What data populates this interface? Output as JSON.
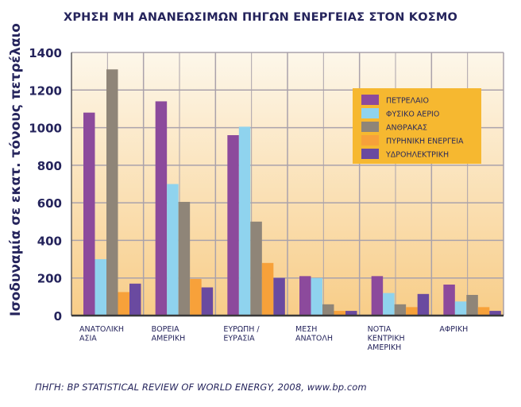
{
  "chart_data": {
    "type": "bar",
    "title": "ΧΡΗΣΗ ΜΗ ΑΝΑΝΕΩΣΙΜΩΝ ΠΗΓΩΝ ΕΝΕΡΓΕΙΑΣ ΣΤΟΝ ΚΟΣΜΟ",
    "ylabel": "Ισοδυναμία σε εκατ. τόνους πετρέλαιο",
    "xlabel": "",
    "ylim": [
      0,
      1400
    ],
    "yticks": [
      "0",
      "200",
      "400",
      "600",
      "800",
      "1000",
      "1200",
      "1400"
    ],
    "grid": true,
    "legend_position": "top-right",
    "categories": [
      [
        "ΑΝΑΤΟΛΙΚΗ",
        "ΑΣΙΑ"
      ],
      [
        "ΒΟΡΕΙΑ",
        "ΑΜΕΡΙΚΗ"
      ],
      [
        "ΕΥΡΩΠΗ /",
        "ΕΥΡΑΣΙΑ"
      ],
      [
        "ΜΕΣΗ",
        "ΑΝΑΤΟΛΗ"
      ],
      [
        "ΝΟΤΙΑ",
        "ΚΕΝΤΡΙΚΗ",
        "ΑΜΕΡΙΚΗ"
      ],
      [
        "ΑΦΡΙΚΗ"
      ]
    ],
    "series": [
      {
        "name": "ΠΕΤΡΕΛΑΙΟ",
        "color": "#8c4a9c",
        "values": [
          1080,
          1140,
          960,
          210,
          210,
          165
        ]
      },
      {
        "name": "ΦΥΣΙΚΟ ΑΕΡΙΟ",
        "color": "#8fd3ee",
        "values": [
          300,
          700,
          1005,
          200,
          120,
          75
        ]
      },
      {
        "name": "ΑΝΘΡΑΚΑΣ",
        "color": "#8f8578",
        "values": [
          1310,
          605,
          500,
          60,
          60,
          110
        ]
      },
      {
        "name": "ΠΥΡΗΝΙΚΗ ΕΝΕΡΓΕΙΑ",
        "color": "#f7a13a",
        "values": [
          125,
          195,
          280,
          25,
          45,
          45
        ]
      },
      {
        "name": "ΥΔΡΟΗΛΕΚΤΡΙΚΗ",
        "color": "#6a4aa0",
        "values": [
          170,
          150,
          200,
          25,
          115,
          25
        ]
      }
    ]
  },
  "source": "ΠΗΓΗ: BP STATISTICAL REVIEW OF WORLD ENERGY, 2008, www.bp.com",
  "colors": {
    "title": "#25245c",
    "grid": "#aaa2ab",
    "legend_bg": "#f6b830",
    "plot_top": "#fdf7ea",
    "plot_bottom": "#f8cd88"
  }
}
